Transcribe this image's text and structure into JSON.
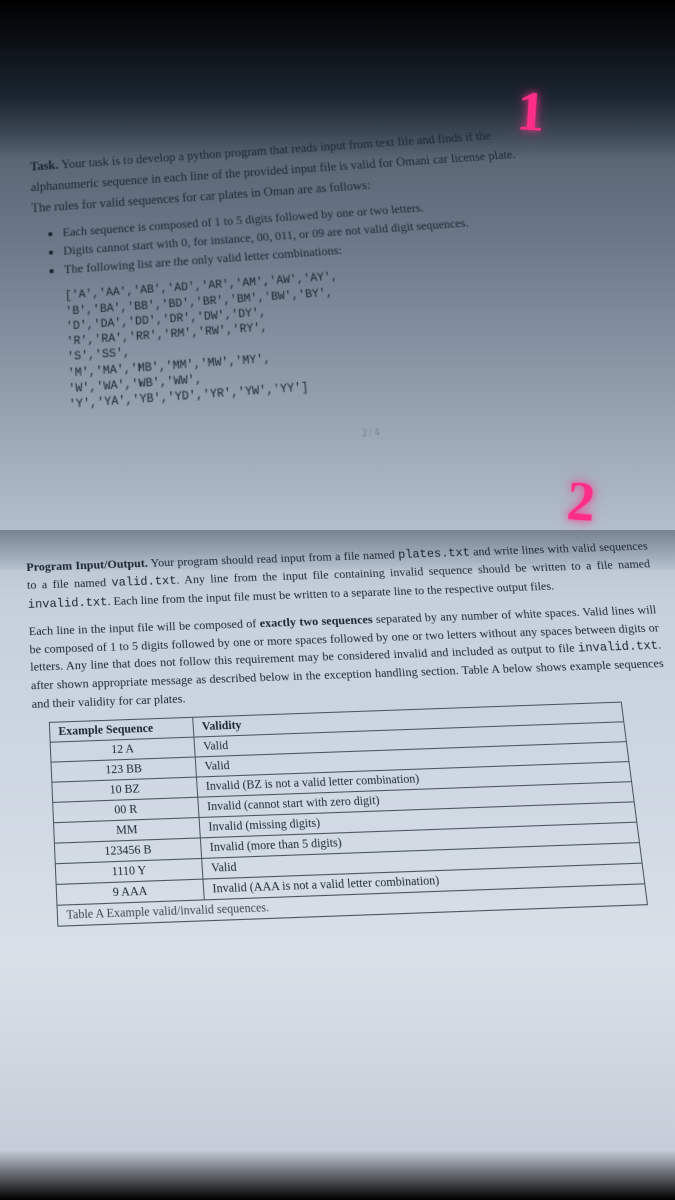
{
  "annotations": {
    "label1": "1",
    "label2": "2"
  },
  "task": {
    "heading": "Task.",
    "intro_line1": "Your task is to develop a python program that reads input from text file and finds if the",
    "intro_line2": "alphanumeric sequence in each line of the provided input file is valid for Omani car license plate.",
    "intro_line3": "The rules for valid sequences for car plates in Oman are as follows:",
    "bullets": [
      "Each sequence is composed of 1 to 5 digits followed by one or two letters.",
      "Digits cannot start with 0, for instance, 00, 011, or 09 are not valid digit sequences.",
      "The following list are the only valid letter combinations:"
    ],
    "code": [
      "['A','AA','AB','AD','AR','AM','AW','AY',",
      "'B','BA','BB','BD','BR','BM','BW','BY',",
      "'D','DA','DD','DR','DW','DY',",
      "'R','RA','RR','RM','RW','RY',",
      "'S','SS',",
      "'M','MA','MB','MM','MW','MY',",
      "'W','WA','WB','WW',",
      "'Y','YA','YB','YD','YR','YW','YY']"
    ],
    "page_indicator": "2 / 4"
  },
  "io": {
    "heading": "Program Input/Output.",
    "para1_rest": "Your program should read input from a file named ",
    "file_plates": "plates.txt",
    "para1_cont": " and write lines with valid sequences to a file named ",
    "file_valid": "valid.txt",
    "para1_cont2": ". Any line from the input file containing invalid sequence should be written to a file named ",
    "file_invalid": "invalid.txt",
    "para1_end": ". Each line from the input file must be written to a separate line to the respective output files.",
    "para2": "Each line in the input file will be composed of ",
    "exactly_two": "exactly two sequences",
    "para2_cont": " separated by any number of white spaces. Valid lines will be composed of 1 to 5 digits followed by one or more spaces followed by one or two letters without any spaces between digits or letters. Any line that does not follow this requirement may be considered invalid and included as output to file ",
    "para2_end": ". after shown appropriate message as described below in the exception handling section. Table A below shows example sequences and their validity for car plates."
  },
  "table": {
    "headers": [
      "Example Sequence",
      "Validity"
    ],
    "rows": [
      [
        "12 A",
        "Valid"
      ],
      [
        "123 BB",
        "Valid"
      ],
      [
        "10 BZ",
        "Invalid (BZ is not a valid letter combination)"
      ],
      [
        "00 R",
        "Invalid (cannot start with zero digit)"
      ],
      [
        "MM",
        "Invalid (missing digits)"
      ],
      [
        "123456 B",
        "Invalid (more than 5 digits)"
      ],
      [
        "1110 Y",
        "Valid"
      ],
      [
        "9 AAA",
        "Invalid (AAA is not a valid letter combination)"
      ]
    ],
    "caption": "Table A Example valid/invalid sequences."
  },
  "colors": {
    "annotation": "#ff2d8a",
    "text": "#1a2530"
  }
}
